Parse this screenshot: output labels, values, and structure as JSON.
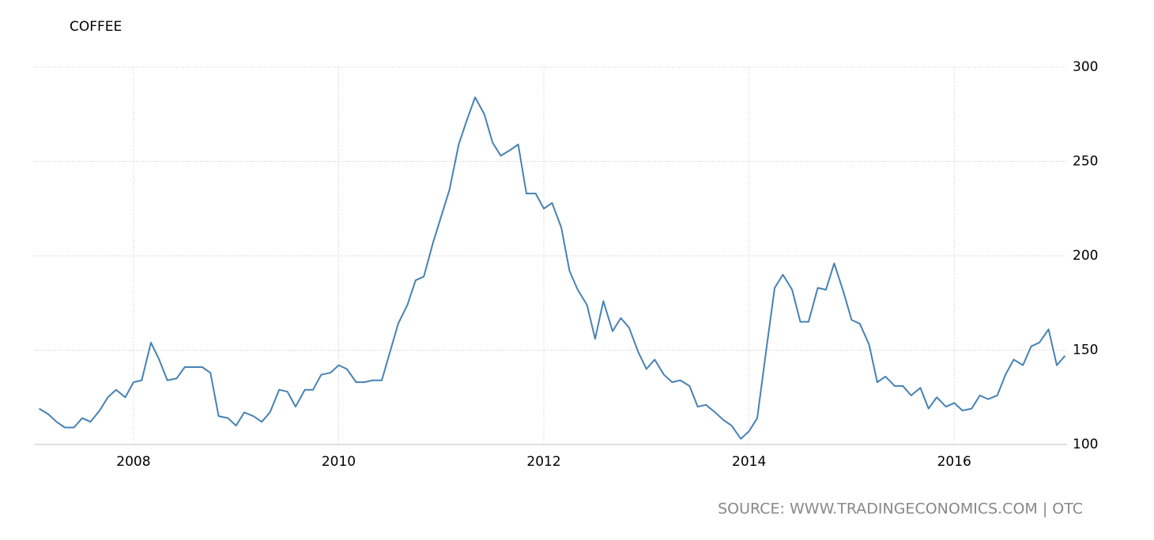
{
  "chart_data": {
    "type": "line",
    "title": "COFFEE",
    "source": "SOURCE: WWW.TRADINGECONOMICS.COM | OTC",
    "x": [
      2007.08,
      2007.17,
      2007.25,
      2007.33,
      2007.42,
      2007.5,
      2007.58,
      2007.67,
      2007.75,
      2007.83,
      2007.92,
      2008,
      2008.08,
      2008.17,
      2008.25,
      2008.33,
      2008.42,
      2008.5,
      2008.58,
      2008.67,
      2008.75,
      2008.83,
      2008.92,
      2009,
      2009.08,
      2009.17,
      2009.25,
      2009.33,
      2009.42,
      2009.5,
      2009.58,
      2009.67,
      2009.75,
      2009.83,
      2009.92,
      2010,
      2010.08,
      2010.17,
      2010.25,
      2010.33,
      2010.42,
      2010.5,
      2010.58,
      2010.67,
      2010.75,
      2010.83,
      2010.92,
      2011,
      2011.08,
      2011.17,
      2011.25,
      2011.33,
      2011.42,
      2011.5,
      2011.58,
      2011.67,
      2011.75,
      2011.83,
      2011.92,
      2012,
      2012.08,
      2012.17,
      2012.25,
      2012.33,
      2012.42,
      2012.5,
      2012.58,
      2012.67,
      2012.75,
      2012.83,
      2012.92,
      2013,
      2013.08,
      2013.17,
      2013.25,
      2013.33,
      2013.42,
      2013.5,
      2013.58,
      2013.67,
      2013.75,
      2013.83,
      2013.92,
      2014,
      2014.08,
      2014.17,
      2014.25,
      2014.33,
      2014.42,
      2014.5,
      2014.58,
      2014.67,
      2014.75,
      2014.83,
      2014.92,
      2015,
      2015.08,
      2015.17,
      2015.25,
      2015.33,
      2015.42,
      2015.5,
      2015.58,
      2015.67,
      2015.75,
      2015.83,
      2015.92,
      2016,
      2016.08,
      2016.17,
      2016.25,
      2016.33,
      2016.42,
      2016.5,
      2016.58,
      2016.67,
      2016.75,
      2016.83,
      2016.92,
      2017,
      2017.08
    ],
    "series": [
      {
        "name": "Coffee",
        "color": "#4682b4",
        "values": [
          119,
          116,
          112,
          109,
          109,
          114,
          112,
          118,
          125,
          129,
          125,
          133,
          134,
          154,
          145,
          134,
          135,
          141,
          141,
          141,
          138,
          115,
          114,
          110,
          117,
          115,
          112,
          117,
          129,
          128,
          120,
          129,
          129,
          137,
          138,
          142,
          140,
          133,
          133,
          134,
          134,
          149,
          164,
          174,
          187,
          189,
          207,
          221,
          235,
          259,
          272,
          284,
          275,
          260,
          253,
          256,
          259,
          233,
          233,
          225,
          228,
          215,
          192,
          182,
          174,
          156,
          176,
          160,
          167,
          162,
          149,
          140,
          145,
          137,
          133,
          134,
          131,
          120,
          121,
          117,
          113,
          110,
          103,
          107,
          114,
          151,
          183,
          190,
          182,
          165,
          165,
          183,
          182,
          196,
          181,
          166,
          164,
          153,
          133,
          136,
          131,
          131,
          126,
          130,
          119,
          125,
          120,
          122,
          118,
          119,
          126,
          124,
          126,
          137,
          145,
          142,
          152,
          154,
          161,
          142,
          147
        ]
      }
    ],
    "xlim": [
      2007.03,
      2017.1
    ],
    "xticks": [
      2008,
      2010,
      2012,
      2014,
      2016
    ],
    "ylim": [
      100,
      300
    ],
    "yticks": [
      100,
      150,
      200,
      250,
      300
    ],
    "grid": true
  }
}
